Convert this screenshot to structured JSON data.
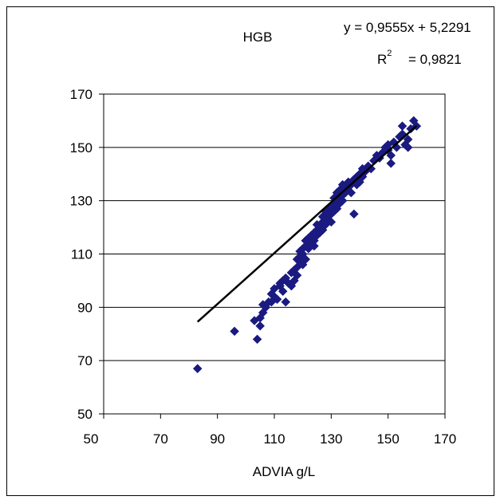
{
  "chart_data": {
    "type": "scatter",
    "title": "HGB",
    "xlabel": "ADVIA g/L",
    "ylabel": "",
    "xlim": [
      50,
      170
    ],
    "ylim": [
      50,
      170
    ],
    "x_ticks": [
      "50",
      "70",
      "90",
      "110",
      "130",
      "150",
      "170"
    ],
    "y_ticks": [
      "50",
      "70",
      "90",
      "110",
      "130",
      "150",
      "170"
    ],
    "grid": "horizontal",
    "marker_color": "#1a1a80",
    "line_color": "#000000",
    "equation": "y = 0,9555x + 5,2291",
    "r2_label": "R",
    "r2_sup": "2",
    "r2_value": "= 0,9821",
    "trendline": {
      "slope": 0.9555,
      "intercept": 5.2291,
      "x_range": [
        83,
        160
      ]
    },
    "points": [
      [
        83,
        67
      ],
      [
        96,
        81
      ],
      [
        103,
        85
      ],
      [
        104,
        78
      ],
      [
        105,
        83
      ],
      [
        105,
        86
      ],
      [
        106,
        88
      ],
      [
        106,
        91
      ],
      [
        107,
        90
      ],
      [
        108,
        92
      ],
      [
        109,
        92
      ],
      [
        109,
        95
      ],
      [
        110,
        94
      ],
      [
        110,
        97
      ],
      [
        111,
        93
      ],
      [
        112,
        98
      ],
      [
        112,
        99
      ],
      [
        113,
        96
      ],
      [
        113,
        100
      ],
      [
        114,
        92
      ],
      [
        114,
        101
      ],
      [
        115,
        99
      ],
      [
        116,
        98
      ],
      [
        116,
        103
      ],
      [
        117,
        100
      ],
      [
        117,
        104
      ],
      [
        118,
        105
      ],
      [
        118,
        102
      ],
      [
        118,
        108
      ],
      [
        119,
        107
      ],
      [
        119,
        109
      ],
      [
        119,
        111
      ],
      [
        120,
        106
      ],
      [
        120,
        110
      ],
      [
        120,
        112
      ],
      [
        121,
        108
      ],
      [
        121,
        113
      ],
      [
        121,
        115
      ],
      [
        122,
        112
      ],
      [
        122,
        116
      ],
      [
        123,
        114
      ],
      [
        123,
        117
      ],
      [
        124,
        115
      ],
      [
        124,
        113
      ],
      [
        124,
        118
      ],
      [
        125,
        117
      ],
      [
        125,
        119
      ],
      [
        125,
        121
      ],
      [
        126,
        118
      ],
      [
        126,
        120
      ],
      [
        127,
        119
      ],
      [
        127,
        122
      ],
      [
        127,
        124
      ],
      [
        128,
        121
      ],
      [
        128,
        123
      ],
      [
        128,
        126
      ],
      [
        129,
        124
      ],
      [
        129,
        127
      ],
      [
        130,
        122
      ],
      [
        130,
        125
      ],
      [
        130,
        128
      ],
      [
        131,
        126
      ],
      [
        131,
        129
      ],
      [
        131,
        131
      ],
      [
        132,
        127
      ],
      [
        132,
        130
      ],
      [
        132,
        133
      ],
      [
        133,
        129
      ],
      [
        133,
        131
      ],
      [
        133,
        134
      ],
      [
        134,
        130
      ],
      [
        134,
        132
      ],
      [
        134,
        136
      ],
      [
        135,
        133
      ],
      [
        135,
        135
      ],
      [
        136,
        134
      ],
      [
        136,
        137
      ],
      [
        137,
        133
      ],
      [
        137,
        136
      ],
      [
        138,
        125
      ],
      [
        138,
        138
      ],
      [
        139,
        136
      ],
      [
        139,
        139
      ],
      [
        140,
        137
      ],
      [
        140,
        140
      ],
      [
        141,
        139
      ],
      [
        141,
        142
      ],
      [
        142,
        141
      ],
      [
        143,
        143
      ],
      [
        144,
        142
      ],
      [
        145,
        145
      ],
      [
        146,
        147
      ],
      [
        147,
        146
      ],
      [
        148,
        148
      ],
      [
        149,
        150
      ],
      [
        150,
        151
      ],
      [
        150,
        149
      ],
      [
        151,
        147
      ],
      [
        151,
        144
      ],
      [
        152,
        152
      ],
      [
        153,
        150
      ],
      [
        154,
        154
      ],
      [
        155,
        155
      ],
      [
        155,
        158
      ],
      [
        156,
        151
      ],
      [
        157,
        150
      ],
      [
        157,
        153
      ],
      [
        158,
        157
      ],
      [
        159,
        160
      ],
      [
        160,
        158
      ]
    ]
  }
}
